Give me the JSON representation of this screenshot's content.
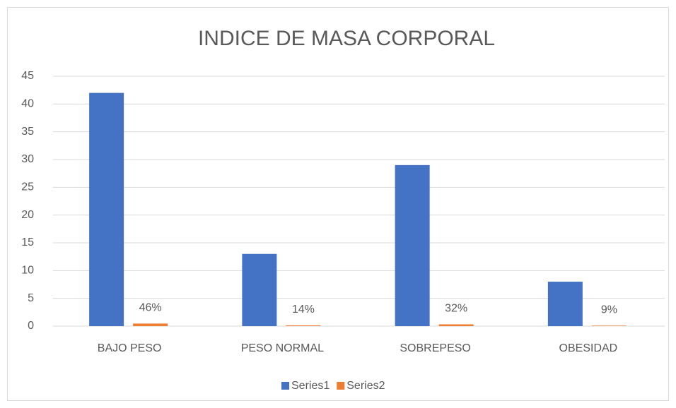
{
  "chart_data": {
    "type": "bar",
    "title": "INDICE DE MASA CORPORAL",
    "categories": [
      "BAJO PESO",
      "PESO NORMAL",
      "SOBREPESO",
      "OBESIDAD"
    ],
    "series": [
      {
        "name": "Series1",
        "color": "#4472c4",
        "values": [
          42,
          13,
          29,
          8
        ]
      },
      {
        "name": "Series2",
        "color": "#ed7d31",
        "values": [
          0.46,
          0.14,
          0.32,
          0.09
        ],
        "value_labels": [
          "46%",
          "14%",
          "32%",
          "9%"
        ]
      }
    ],
    "ylim": [
      0,
      45
    ],
    "yticks": [
      0,
      5,
      10,
      15,
      20,
      25,
      30,
      35,
      40,
      45
    ],
    "grid": true,
    "legend": "bottom"
  }
}
